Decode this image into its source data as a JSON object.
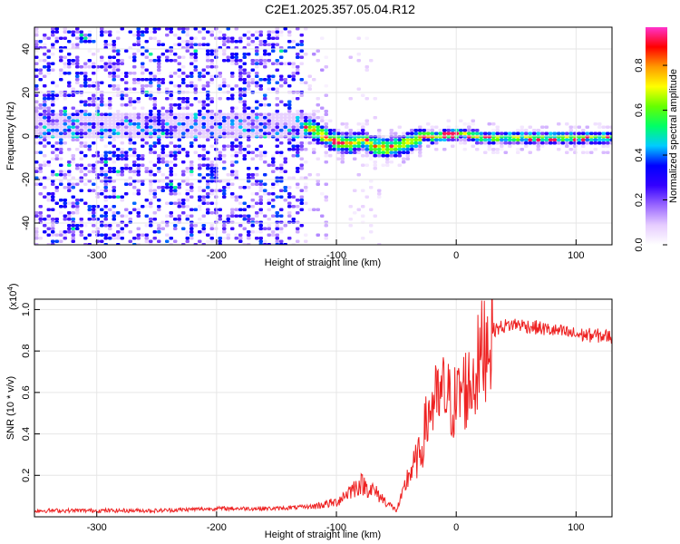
{
  "title": "C2E1.2025.357.05.04.R12",
  "chart_data": [
    {
      "type": "heatmap",
      "xlabel": "Height of straight line (km)",
      "ylabel": "Frequency (Hz)",
      "xlim": [
        -352,
        130
      ],
      "ylim": [
        -50,
        50
      ],
      "xticks": [
        "-300",
        "-200",
        "-100",
        "0",
        "100"
      ],
      "yticks": [
        "-40",
        "-20",
        "0",
        "20",
        "40"
      ],
      "ridge_frequency": {
        "x": [
          -130,
          -120,
          -110,
          -100,
          -90,
          -80,
          -70,
          -60,
          -50,
          -40,
          -30,
          -20,
          -10,
          0,
          20,
          60,
          130
        ],
        "freq": [
          6,
          3,
          0,
          -2,
          -3,
          -1,
          -4,
          -5,
          -4,
          -2,
          1,
          0,
          1,
          2,
          0,
          0,
          0
        ]
      },
      "colorbar": {
        "label": "Normalized spectral amplitude",
        "ticks": [
          "0.0",
          "0.2",
          "0.4",
          "0.6",
          "0.8"
        ],
        "range": [
          0,
          0.97
        ],
        "colors": [
          "#ffffff",
          "#e6ccff",
          "#9966ff",
          "#3300ff",
          "#0000ff",
          "#00ccff",
          "#00ff66",
          "#66ff00",
          "#ffff00",
          "#ff9900",
          "#ff0000",
          "#ff33cc"
        ]
      },
      "grid": true
    },
    {
      "type": "line",
      "xlabel": "Height of straight line (km)",
      "ylabel": "SNR (10 * v/v)",
      "multiplier": "(x10",
      "multiplier_exp": "4",
      "xlim": [
        -352,
        130
      ],
      "ylim": [
        0,
        1.05
      ],
      "xticks": [
        "-300",
        "-200",
        "-100",
        "0",
        "100"
      ],
      "yticks": [
        "0.2",
        "0.4",
        "0.6",
        "0.8",
        "1.0"
      ],
      "grid": true,
      "series": [
        {
          "color": "#ee2222",
          "x": [
            -352,
            -300,
            -250,
            -200,
            -150,
            -120,
            -100,
            -90,
            -80,
            -70,
            -60,
            -50,
            -45,
            -40,
            -30,
            -25,
            -20,
            -15,
            -10,
            -5,
            0,
            5,
            10,
            15,
            20,
            25,
            30,
            40,
            50,
            60,
            80,
            100,
            130
          ],
          "y": [
            0.03,
            0.03,
            0.03,
            0.04,
            0.04,
            0.05,
            0.07,
            0.12,
            0.16,
            0.13,
            0.08,
            0.03,
            0.1,
            0.2,
            0.3,
            0.45,
            0.55,
            0.55,
            0.6,
            0.55,
            0.55,
            0.62,
            0.62,
            0.68,
            0.76,
            0.86,
            0.9,
            0.92,
            0.93,
            0.92,
            0.9,
            0.88,
            0.87
          ]
        }
      ]
    }
  ]
}
